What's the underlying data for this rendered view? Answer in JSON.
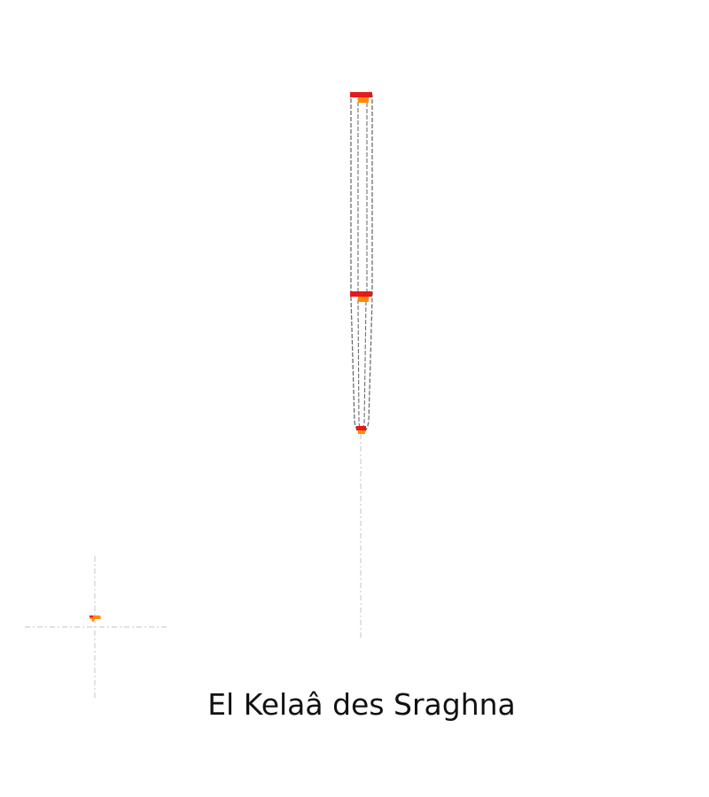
{
  "place_name": "El Kelaâ des Sraghna",
  "colors": {
    "background": "#ffffff",
    "outline": "#6e6e6e",
    "guide_line": "#c8c8c8",
    "marker_red": "#e41a1c",
    "marker_orange": "#ff8c00",
    "label_text": "#111111"
  }
}
